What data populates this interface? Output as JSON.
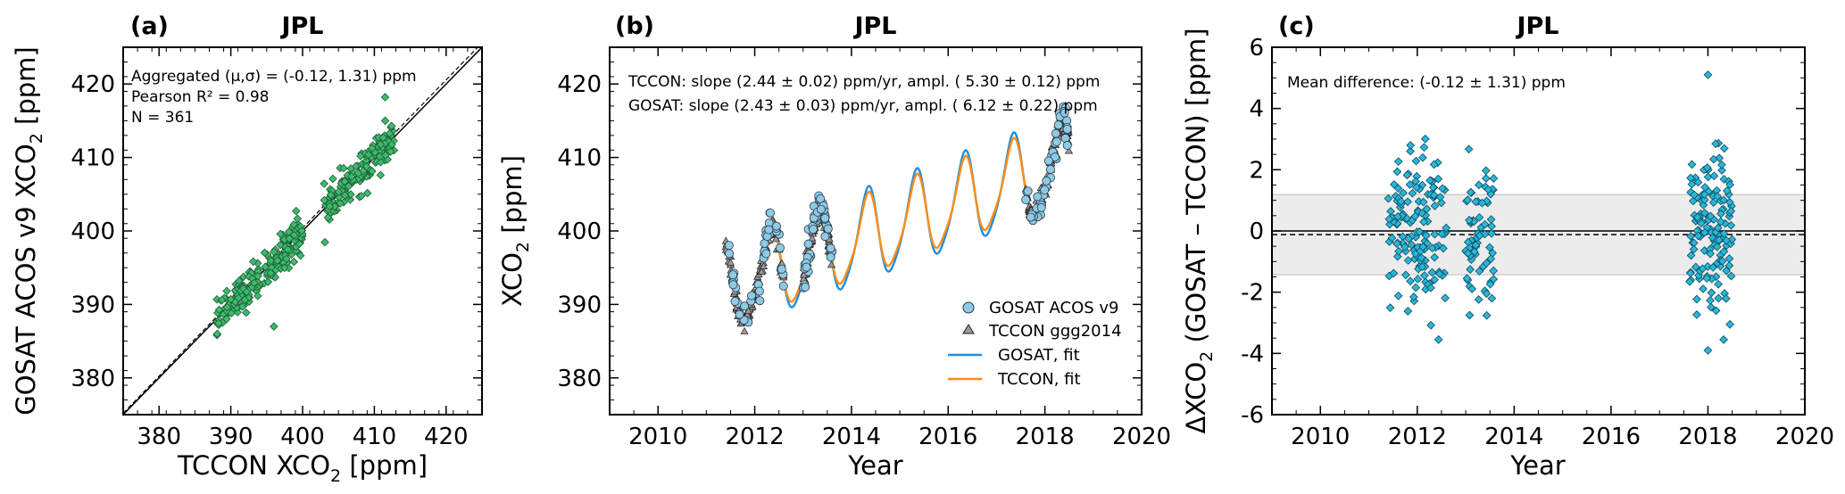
{
  "chart_data": [
    {
      "id": "a",
      "type": "scatter",
      "panel_label": "(a)",
      "title": "JPL",
      "xlabel": "TCCON XCO",
      "xlabel_sub": "2",
      "xlabel_unit": " [ppm]",
      "ylabel": "GOSAT ACOS v9 XCO",
      "ylabel_sub": "2",
      "ylabel_unit": " [ppm]",
      "xlim": [
        375,
        425
      ],
      "ylim": [
        375,
        425
      ],
      "xticks": [
        380,
        390,
        400,
        410,
        420
      ],
      "yticks": [
        380,
        390,
        400,
        410,
        420
      ],
      "annotations": [
        "Aggregated (μ,σ) = (-0.12, 1.31) ppm",
        "Pearson R² = 0.98",
        "N =  361"
      ],
      "marker_color": "#3dba6e",
      "one_to_one_line": true,
      "n_points": 361,
      "point_clusters": [
        {
          "x_range": [
            388,
            400
          ],
          "center_slope": 0.97,
          "spread": 1.3
        },
        {
          "x_range": [
            403,
            413
          ],
          "center_slope": 0.99,
          "spread": 1.3
        }
      ]
    },
    {
      "id": "b",
      "type": "line",
      "panel_label": "(b)",
      "title": "JPL",
      "xlabel": "Year",
      "ylabel": "XCO",
      "ylabel_sub": "2",
      "ylabel_unit": " [ppm]",
      "xlim": [
        2009,
        2020
      ],
      "ylim": [
        375,
        425
      ],
      "xticks": [
        2010,
        2012,
        2014,
        2016,
        2018,
        2020
      ],
      "yticks": [
        380,
        390,
        400,
        410,
        420
      ],
      "annotations": [
        "TCCON: slope (2.44 ± 0.02) ppm/yr, ampl. ( 5.30 ± 0.12) ppm",
        "GOSAT: slope (2.43 ± 0.03) ppm/yr, ampl. ( 6.12 ± 0.22) ppm"
      ],
      "series": [
        {
          "name": "GOSAT ACOS v9",
          "kind": "scatter",
          "marker": "circle",
          "color": "#8ecae6",
          "slope": 2.43,
          "amplitude": 6.12
        },
        {
          "name": "TCCON ggg2014",
          "kind": "scatter",
          "marker": "triangle",
          "color": "#9a9a9a",
          "slope": 2.44,
          "amplitude": 5.3
        },
        {
          "name": "GOSAT, fit",
          "kind": "line",
          "color": "#1f8ee0",
          "x_range": [
            2011.4,
            2018.5
          ],
          "slope": 2.43,
          "amplitude": 6.12
        },
        {
          "name": "TCCON, fit",
          "kind": "line",
          "color": "#ff8c1a",
          "x_range": [
            2011.4,
            2018.5
          ],
          "slope": 2.44,
          "amplitude": 5.3
        }
      ],
      "fit_base": {
        "year": 2012.0,
        "value": 393.5
      },
      "data_periods": [
        [
          2011.4,
          2012.6
        ],
        [
          2013.0,
          2013.6
        ],
        [
          2017.6,
          2018.5
        ]
      ],
      "legend_position": "lower-right"
    },
    {
      "id": "c",
      "type": "scatter",
      "panel_label": "(c)",
      "title": "JPL",
      "xlabel": "Year",
      "ylabel": "ΔXCO",
      "ylabel_sub": "2",
      "ylabel_unit": " (GOSAT – TCCON) [ppm]",
      "xlim": [
        2009,
        2020
      ],
      "ylim": [
        -6,
        6
      ],
      "xticks": [
        2010,
        2012,
        2014,
        2016,
        2018,
        2020
      ],
      "yticks": [
        -6,
        -4,
        -2,
        0,
        2,
        4,
        6
      ],
      "annotations": [
        "Mean difference: (-0.12 ± 1.31) ppm"
      ],
      "marker_color": "#29b6d8",
      "mean": -0.12,
      "std": 1.31,
      "data_periods": [
        [
          2011.4,
          2012.6
        ],
        [
          2013.0,
          2013.6
        ],
        [
          2017.6,
          2018.5
        ]
      ],
      "outlier_max": 5.1,
      "outlier_min": -3.9
    }
  ]
}
